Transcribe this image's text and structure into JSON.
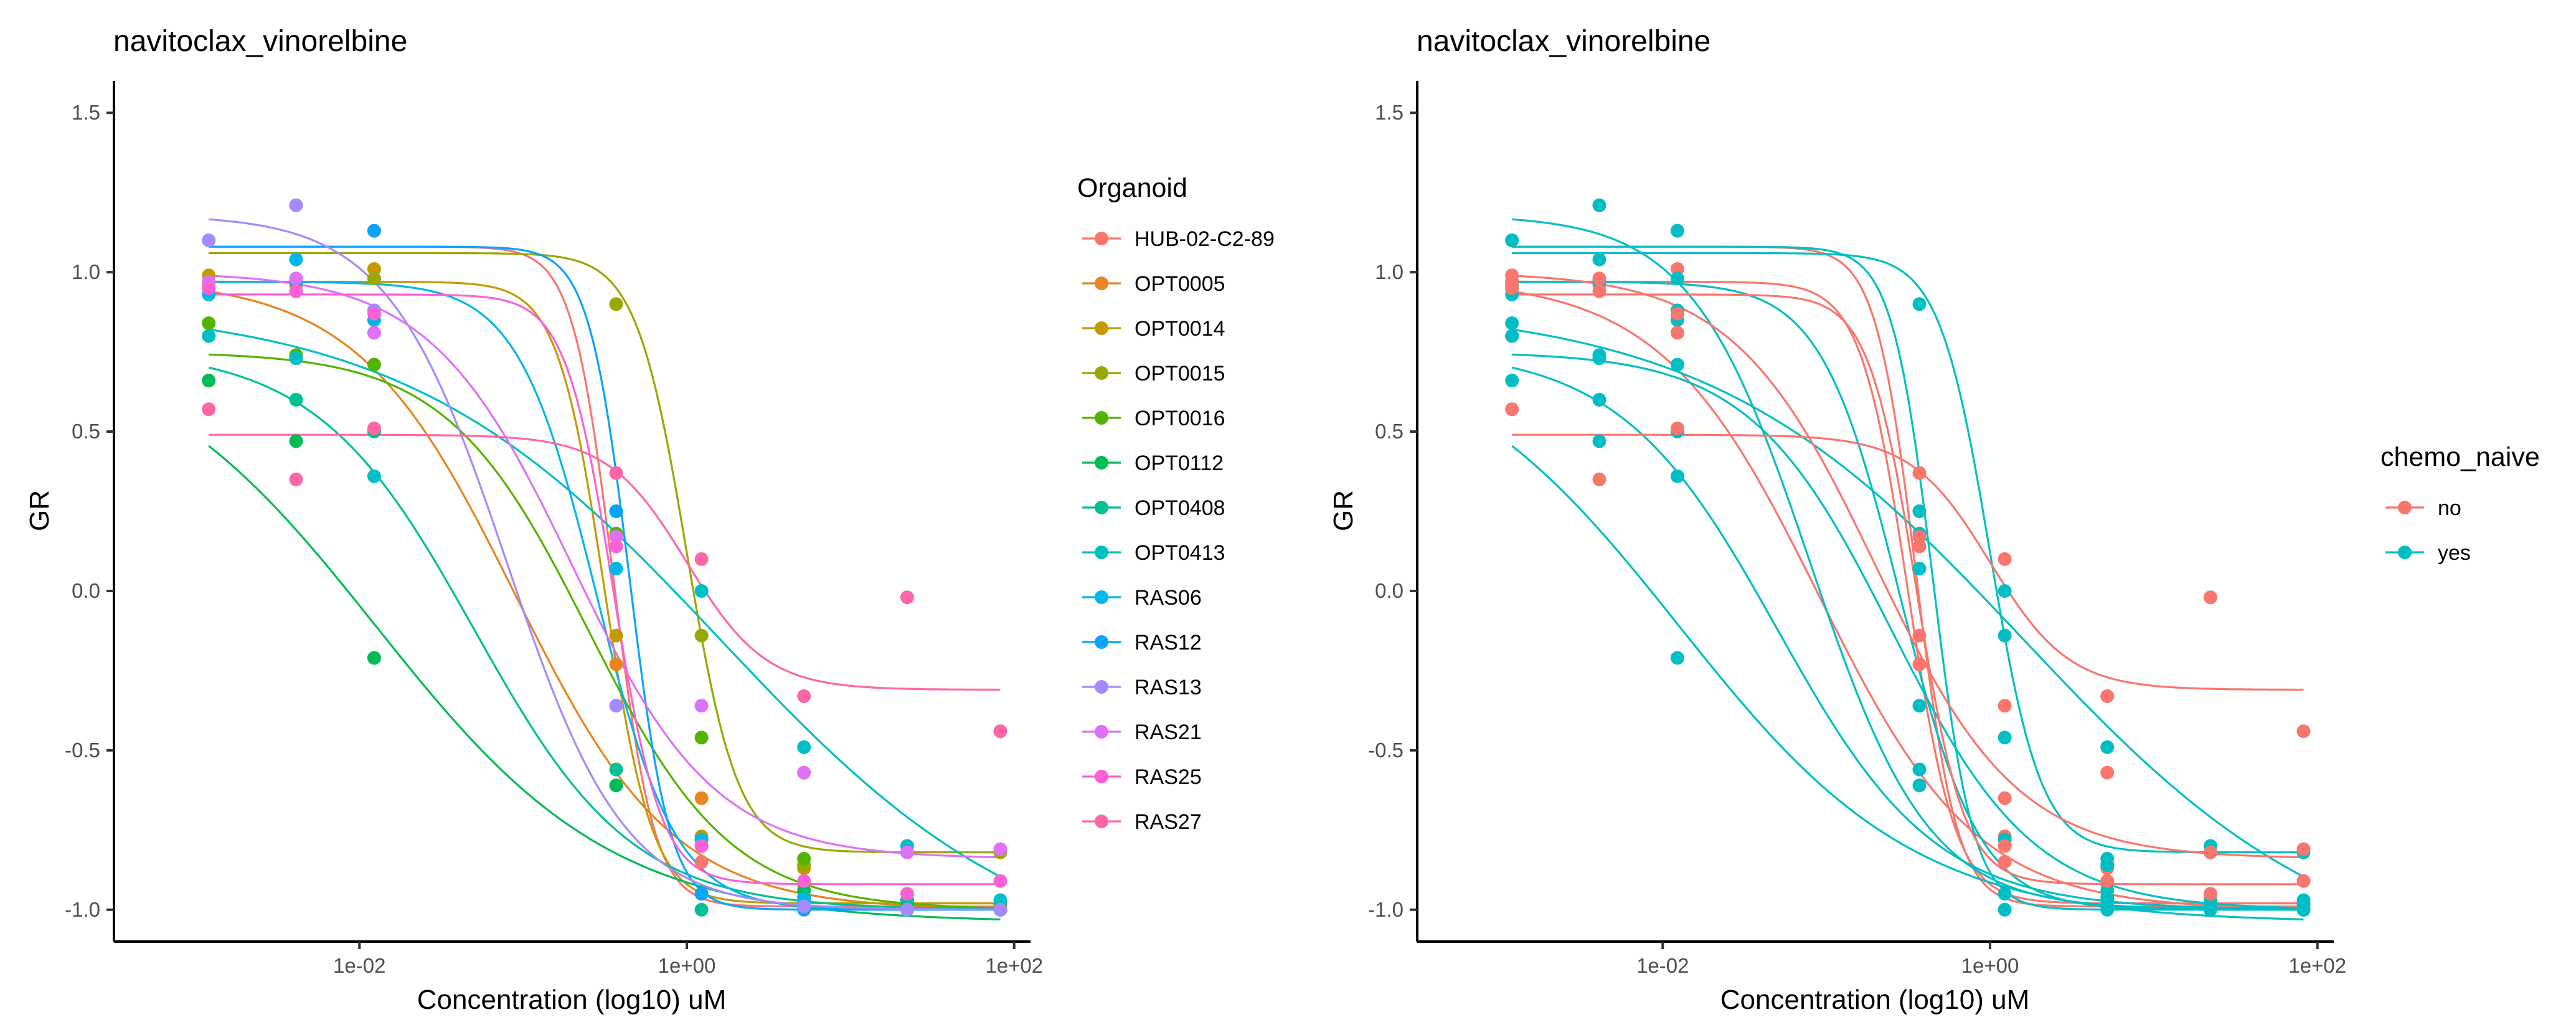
{
  "chart_data": [
    {
      "type": "scatter",
      "title": "navitoclax_vinorelbine",
      "xlabel": "Concentration (log10) uM",
      "ylabel": "GR",
      "x_scale": "log10",
      "xlim_log10": [
        -3.5,
        2.1
      ],
      "ylim": [
        -1.1,
        1.6
      ],
      "x_ticks": [
        {
          "value": 0.01,
          "label": "1e-02"
        },
        {
          "value": 1,
          "label": "1e+00"
        },
        {
          "value": 100,
          "label": "1e+02"
        }
      ],
      "y_ticks": [
        {
          "value": 1.5,
          "label": "1.5"
        },
        {
          "value": 1.0,
          "label": "1.0"
        },
        {
          "value": 0.5,
          "label": "0.5"
        },
        {
          "value": 0.0,
          "label": "0.0"
        },
        {
          "value": -0.5,
          "label": "-0.5"
        },
        {
          "value": -1.0,
          "label": "-1.0"
        }
      ],
      "legend_title": "Organoid",
      "legend_position": "right",
      "grid": false,
      "series": [
        {
          "name": "HUB-02-C2-89",
          "color": "#F8766D",
          "group": "no",
          "x": [
            0.0012,
            0.0041,
            0.0123,
            0.37,
            1.23,
            5.2,
            22.2,
            82.3
          ],
          "y": [
            1.1,
            1.21,
            1.13,
            0.25,
            -0.85,
            -0.97,
            -0.99,
            -0.98
          ],
          "fit": {
            "top": 1.08,
            "bottom": -0.99,
            "log_ec50": -0.45,
            "hill": 3.5
          }
        },
        {
          "name": "OPT0005",
          "color": "#E7851E",
          "group": "no",
          "x": [
            0.0012,
            0.0041,
            0.0123,
            0.37,
            1.23,
            5.2,
            22.2,
            82.3
          ],
          "y": [
            0.97,
            0.96,
            0.88,
            -0.23,
            -0.65,
            -0.92,
            -0.98,
            -0.99
          ],
          "fit": {
            "top": 0.98,
            "bottom": -1.0,
            "log_ec50": -1.05,
            "hill": 0.9
          }
        },
        {
          "name": "OPT0014",
          "color": "#C49A00",
          "group": "no",
          "x": [
            0.0012,
            0.0041,
            0.0123,
            0.37,
            1.23,
            5.2,
            22.2,
            82.3
          ],
          "y": [
            0.99,
            0.98,
            1.01,
            -0.14,
            -0.77,
            -0.87,
            -0.97,
            -1.0
          ],
          "fit": {
            "top": 0.97,
            "bottom": -0.98,
            "log_ec50": -0.5,
            "hill": 3.0
          }
        },
        {
          "name": "OPT0015",
          "color": "#99A800",
          "group": "yes",
          "x": [
            0.0012,
            0.0041,
            0.0123,
            0.37,
            1.23,
            5.2,
            22.2,
            82.3
          ],
          "y": [
            0.96,
            0.97,
            0.98,
            0.9,
            -0.14,
            -0.86,
            -0.82,
            -0.82
          ],
          "fit": {
            "top": 1.06,
            "bottom": -0.82,
            "log_ec50": 0.0,
            "hill": 2.8
          }
        },
        {
          "name": "OPT0016",
          "color": "#53B400",
          "group": "yes",
          "x": [
            0.0012,
            0.0041,
            0.0123,
            0.37,
            1.23,
            5.2,
            22.2,
            82.3
          ],
          "y": [
            0.84,
            0.74,
            0.71,
            0.18,
            -0.46,
            -0.84,
            -0.97,
            -0.98
          ],
          "fit": {
            "top": 0.75,
            "bottom": -1.0,
            "log_ec50": -0.6,
            "hill": 1.0
          }
        },
        {
          "name": "OPT0112",
          "color": "#00BC56",
          "group": "yes",
          "x": [
            0.0012,
            0.0041,
            0.0123,
            0.37,
            1.23,
            5.2,
            22.2,
            82.3
          ],
          "y": [
            0.66,
            0.47,
            -0.21,
            -0.61,
            -0.78,
            -0.94,
            -0.98,
            -1.0
          ],
          "fit": {
            "top": 0.82,
            "bottom": -1.04,
            "log_ec50": -1.9,
            "hill": 0.6
          }
        },
        {
          "name": "OPT0408",
          "color": "#00C094",
          "group": "yes",
          "x": [
            0.0012,
            0.0041,
            0.0123,
            0.37,
            1.23,
            5.2,
            22.2,
            82.3
          ],
          "y": [
            0.8,
            0.6,
            0.5,
            -0.56,
            -1.0,
            -0.96,
            -0.97,
            -1.0
          ],
          "fit": {
            "top": 0.76,
            "bottom": -1.0,
            "log_ec50": -1.3,
            "hill": 0.9
          }
        },
        {
          "name": "OPT0413",
          "color": "#00BFC4",
          "group": "yes",
          "x": [
            0.0012,
            0.0041,
            0.0123,
            0.37,
            1.23,
            5.2,
            22.2,
            82.3
          ],
          "y": [
            0.8,
            0.73,
            0.36,
            0.07,
            0.0,
            -0.49,
            -0.8,
            -0.97
          ],
          "fit": {
            "top": 0.9,
            "bottom": -1.2,
            "log_ec50": 0.2,
            "hill": 0.45
          }
        },
        {
          "name": "RAS06",
          "color": "#00B6EB",
          "group": "yes",
          "x": [
            0.0012,
            0.0041,
            0.0123,
            0.37,
            1.23,
            5.2,
            22.2,
            82.3
          ],
          "y": [
            0.93,
            1.04,
            0.85,
            0.07,
            -0.78,
            -0.97,
            -1.0,
            -1.0
          ],
          "fit": {
            "top": 0.97,
            "bottom": -1.0,
            "log_ec50": -0.55,
            "hill": 1.8
          }
        },
        {
          "name": "RAS12",
          "color": "#06A4FF",
          "group": "yes",
          "x": [
            0.0012,
            0.0041,
            0.0123,
            0.37,
            1.23,
            5.2,
            22.2,
            82.3
          ],
          "y": [
            0.95,
            0.97,
            1.13,
            0.25,
            -0.95,
            -1.0,
            -1.0,
            -1.0
          ],
          "fit": {
            "top": 1.08,
            "bottom": -1.0,
            "log_ec50": -0.35,
            "hill": 3.5
          }
        },
        {
          "name": "RAS13",
          "color": "#A58AFF",
          "group": "yes",
          "x": [
            0.0012,
            0.0041,
            0.0123,
            0.37,
            1.23,
            5.2,
            22.2,
            82.3
          ],
          "y": [
            1.1,
            1.21,
            0.88,
            -0.36,
            -0.8,
            -0.99,
            -1.0,
            -1.0
          ],
          "fit": {
            "top": 1.18,
            "bottom": -1.0,
            "log_ec50": -1.1,
            "hill": 1.2
          }
        },
        {
          "name": "RAS21",
          "color": "#DF70F8",
          "group": "no",
          "x": [
            0.0012,
            0.0041,
            0.0123,
            0.37,
            1.23,
            5.2,
            22.2,
            82.3
          ],
          "y": [
            0.97,
            0.98,
            0.81,
            0.17,
            -0.36,
            -0.57,
            -0.82,
            -0.81
          ],
          "fit": {
            "top": 1.0,
            "bottom": -0.84,
            "log_ec50": -0.7,
            "hill": 1.0
          }
        },
        {
          "name": "RAS25",
          "color": "#FB61D7",
          "group": "no",
          "x": [
            0.0012,
            0.0041,
            0.0123,
            0.37,
            1.23,
            5.2,
            22.2,
            82.3
          ],
          "y": [
            0.95,
            0.94,
            0.87,
            0.14,
            -0.8,
            -0.91,
            -0.95,
            -0.91
          ],
          "fit": {
            "top": 0.93,
            "bottom": -0.92,
            "log_ec50": -0.45,
            "hill": 3.0
          }
        },
        {
          "name": "RAS27",
          "color": "#FF66A8",
          "group": "no",
          "x": [
            0.0012,
            0.0041,
            0.0123,
            0.37,
            1.23,
            5.2,
            22.2,
            82.3
          ],
          "y": [
            0.57,
            0.35,
            0.51,
            0.37,
            0.1,
            -0.33,
            -0.02,
            -0.44
          ],
          "fit": {
            "top": 0.49,
            "bottom": -0.31,
            "log_ec50": 0.0,
            "hill": 1.8
          }
        }
      ]
    },
    {
      "type": "scatter",
      "title": "navitoclax_vinorelbine",
      "xlabel": "Concentration (log10) uM",
      "ylabel": "GR",
      "x_scale": "log10",
      "xlim_log10": [
        -3.5,
        2.1
      ],
      "ylim": [
        -1.1,
        1.6
      ],
      "x_ticks": [
        {
          "value": 0.01,
          "label": "1e-02"
        },
        {
          "value": 1,
          "label": "1e+00"
        },
        {
          "value": 100,
          "label": "1e+02"
        }
      ],
      "y_ticks": [
        {
          "value": 1.5,
          "label": "1.5"
        },
        {
          "value": 1.0,
          "label": "1.0"
        },
        {
          "value": 0.5,
          "label": "0.5"
        },
        {
          "value": 0.0,
          "label": "0.0"
        },
        {
          "value": -0.5,
          "label": "-0.5"
        },
        {
          "value": -1.0,
          "label": "-1.0"
        }
      ],
      "legend_title": "chemo_naive",
      "legend_position": "right",
      "grid": false,
      "groups": [
        {
          "name": "no",
          "color": "#F8766D"
        },
        {
          "name": "yes",
          "color": "#00BFC4"
        }
      ],
      "series_source": "same organoid data, colored by chemo_naive group"
    }
  ]
}
